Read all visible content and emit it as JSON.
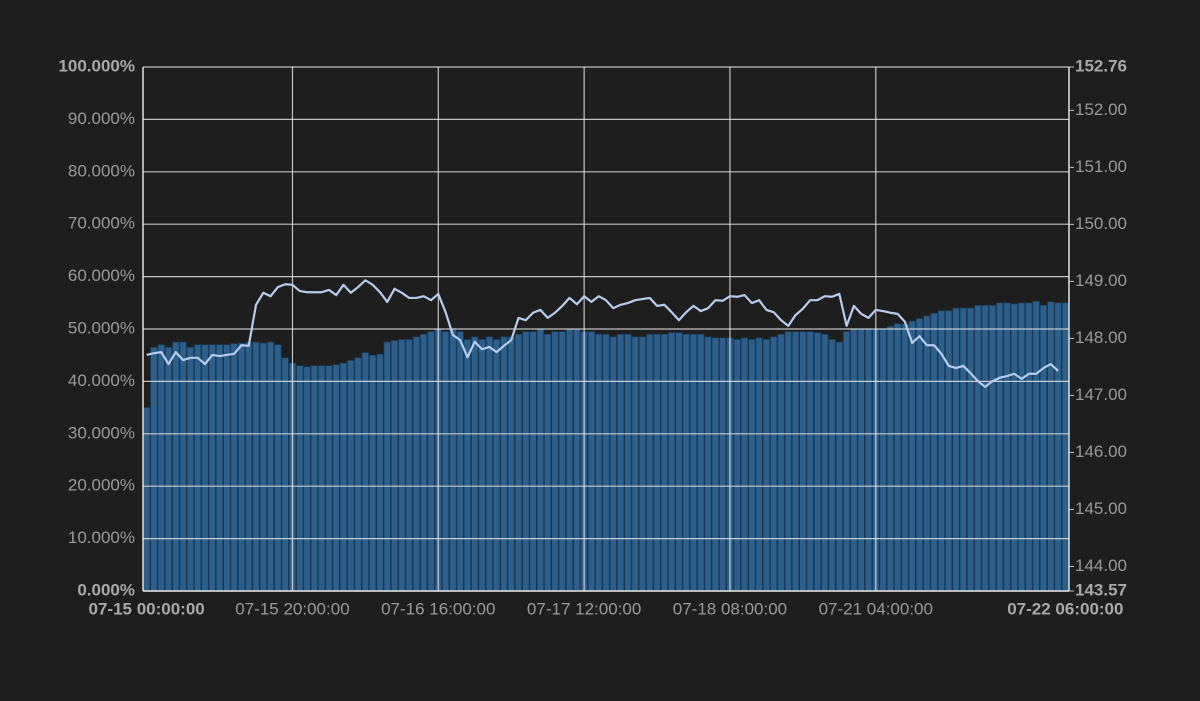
{
  "chart_data": {
    "type": "bar+line",
    "categories": [
      "07-15 00:00:00",
      null,
      null,
      null,
      null,
      null,
      null,
      null,
      null,
      null,
      null,
      null,
      null,
      null,
      null,
      null,
      null,
      null,
      null,
      null,
      "07-15 20:00:00",
      null,
      null,
      null,
      null,
      null,
      null,
      null,
      null,
      null,
      null,
      null,
      null,
      null,
      null,
      null,
      null,
      null,
      null,
      null,
      "07-16 16:00:00",
      null,
      null,
      null,
      null,
      null,
      null,
      null,
      null,
      null,
      null,
      null,
      null,
      null,
      null,
      null,
      null,
      null,
      null,
      null,
      "07-17 12:00:00",
      null,
      null,
      null,
      null,
      null,
      null,
      null,
      null,
      null,
      null,
      null,
      null,
      null,
      null,
      null,
      null,
      null,
      null,
      null,
      "07-18 08:00:00",
      null,
      null,
      null,
      null,
      null,
      null,
      null,
      null,
      null,
      null,
      null,
      null,
      null,
      null,
      null,
      null,
      null,
      null,
      null,
      "07-21 04:00:00",
      null,
      null,
      null,
      null,
      null,
      null,
      null,
      null,
      null,
      null,
      null,
      null,
      null,
      null,
      null,
      null,
      null,
      null,
      null,
      null,
      null,
      null,
      null,
      null,
      null,
      "07-22 06:00:00"
    ],
    "series": [
      {
        "type": "bar",
        "color": "#2d5f8a",
        "axis": "y",
        "values": [
          35,
          46.5,
          47,
          46.5,
          47.5,
          47.5,
          46.5,
          47,
          47,
          47,
          47,
          47,
          47.2,
          47.3,
          47.5,
          47.5,
          47.3,
          47.5,
          47,
          44.5,
          43.5,
          43,
          42.8,
          43,
          43,
          43,
          43.2,
          43.5,
          44,
          44.5,
          45.5,
          45,
          45.2,
          47.5,
          47.8,
          48,
          48,
          48.5,
          49,
          49.5,
          50,
          49.5,
          50,
          49.5,
          48,
          48.5,
          48,
          48.5,
          48,
          48.5,
          48.5,
          49,
          49.5,
          49.5,
          50,
          49,
          49.5,
          49.5,
          50,
          50,
          49.5,
          49.5,
          49,
          49,
          48.5,
          49,
          49,
          48.5,
          48.5,
          49,
          49,
          49,
          49.3,
          49.3,
          49,
          49,
          49,
          48.5,
          48.3,
          48.3,
          48.3,
          48,
          48.3,
          48,
          48.3,
          48,
          48.5,
          49,
          49.5,
          49.5,
          49.5,
          49.5,
          49.3,
          49,
          48,
          47.5,
          49.5,
          50,
          50,
          50,
          50,
          50,
          50.5,
          51,
          51,
          51.5,
          52,
          52.5,
          53,
          53.5,
          53.5,
          54,
          54,
          54,
          54.5,
          54.5,
          54.5,
          55,
          55,
          54.8,
          55,
          55,
          55.3,
          54.5,
          55.2,
          55,
          55
        ]
      },
      {
        "type": "line",
        "color": "#b8cdee",
        "axis": "y2",
        "values": [
          147.71,
          147.74,
          147.76,
          147.55,
          147.76,
          147.62,
          147.66,
          147.66,
          147.55,
          147.71,
          147.69,
          147.71,
          147.73,
          147.88,
          147.87,
          148.59,
          148.8,
          148.74,
          148.9,
          148.95,
          148.94,
          148.83,
          148.81,
          148.81,
          148.81,
          148.85,
          148.76,
          148.94,
          148.8,
          148.9,
          149.02,
          148.94,
          148.81,
          148.64,
          148.87,
          148.8,
          148.71,
          148.71,
          148.74,
          148.67,
          148.78,
          148.46,
          148.06,
          147.97,
          147.67,
          147.94,
          147.81,
          147.85,
          147.76,
          147.87,
          147.97,
          148.36,
          148.32,
          148.45,
          148.5,
          148.36,
          148.45,
          148.57,
          148.71,
          148.6,
          148.74,
          148.64,
          148.74,
          148.67,
          148.53,
          148.59,
          148.62,
          148.67,
          148.69,
          148.71,
          148.57,
          148.59,
          148.46,
          148.32,
          148.46,
          148.57,
          148.48,
          148.53,
          148.67,
          148.66,
          148.74,
          148.73,
          148.76,
          148.62,
          148.67,
          148.5,
          148.46,
          148.32,
          148.22,
          148.41,
          148.52,
          148.67,
          148.67,
          148.74,
          148.73,
          148.78,
          148.22,
          148.57,
          148.43,
          148.36,
          148.5,
          148.48,
          148.45,
          148.43,
          148.29,
          147.92,
          148.04,
          147.88,
          147.88,
          147.73,
          147.52,
          147.48,
          147.52,
          147.39,
          147.25,
          147.15,
          147.25,
          147.31,
          147.34,
          147.38,
          147.29,
          147.38,
          147.38,
          147.48,
          147.55,
          147.43,
          null
        ]
      }
    ],
    "ylim": [
      0,
      100
    ],
    "yticks": [
      {
        "value": 0,
        "label": "0.000%"
      },
      {
        "value": 10,
        "label": "10.000%"
      },
      {
        "value": 20,
        "label": "20.000%"
      },
      {
        "value": 30,
        "label": "30.000%"
      },
      {
        "value": 40,
        "label": "40.000%"
      },
      {
        "value": 50,
        "label": "50.000%"
      },
      {
        "value": 60,
        "label": "60.000%"
      },
      {
        "value": 70,
        "label": "70.000%"
      },
      {
        "value": 80,
        "label": "80.000%"
      },
      {
        "value": 90,
        "label": "90.000%"
      },
      {
        "value": 100,
        "label": "100.000%"
      }
    ],
    "y2lim": [
      143.57,
      152.76
    ],
    "y2ticks": [
      143.57,
      {
        "value": 144,
        "label": "144.00"
      },
      {
        "value": 145,
        "label": "145.00"
      },
      {
        "value": 146,
        "label": "146.00"
      },
      {
        "value": 147,
        "label": "147.00"
      },
      {
        "value": 148,
        "label": "148.00"
      },
      {
        "value": 149,
        "label": "149.00"
      },
      {
        "value": 150,
        "label": "150.00"
      },
      {
        "value": 151,
        "label": "151.00"
      },
      {
        "value": 152,
        "label": "152.00"
      },
      152.76
    ],
    "grid": true
  }
}
